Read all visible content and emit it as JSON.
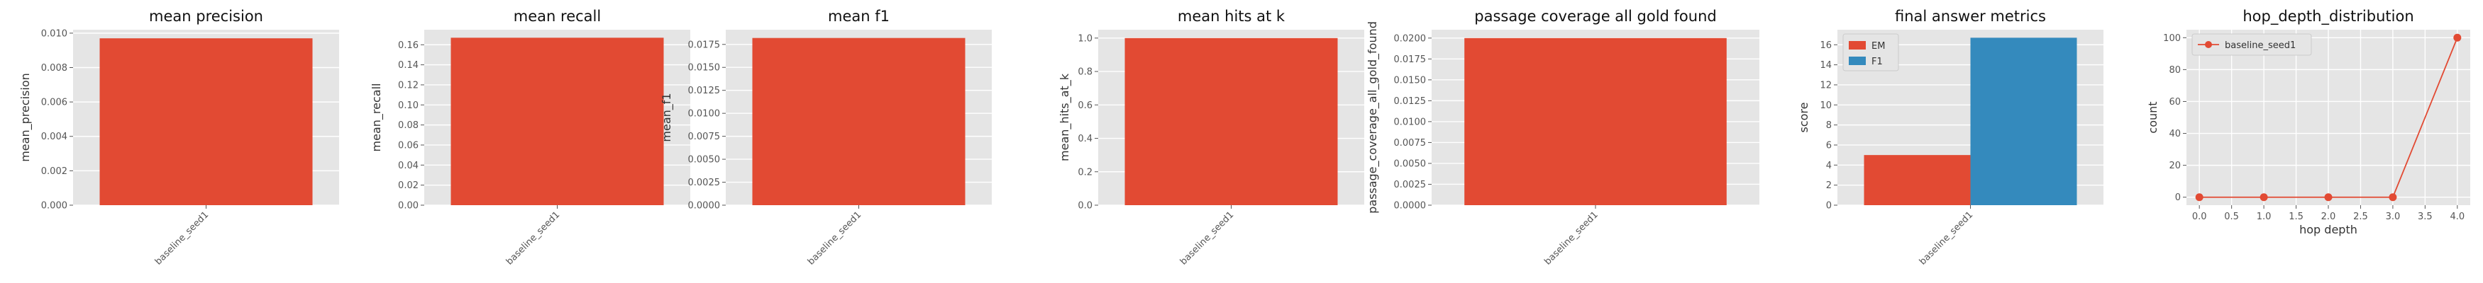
{
  "colors": {
    "panel_bg": "#e5e5e5",
    "grid": "#ffffff",
    "bar": "#e24a33",
    "series_em": "#e24a33",
    "series_f1": "#348abd",
    "line": "#e24a33"
  },
  "chart_data": [
    {
      "type": "bar",
      "title": "mean precision",
      "xlabel": "",
      "ylabel": "mean_precision",
      "categories": [
        "baseline_seed1"
      ],
      "values": [
        0.0097
      ],
      "ylim": [
        0,
        0.0102
      ],
      "yticks": [
        "0.000",
        "0.002",
        "0.004",
        "0.006",
        "0.008",
        "0.010"
      ],
      "grid": true
    },
    {
      "type": "bar",
      "title": "mean recall",
      "xlabel": "",
      "ylabel": "mean_recall",
      "categories": [
        "baseline_seed1"
      ],
      "values": [
        0.167
      ],
      "ylim": [
        0,
        0.175
      ],
      "yticks": [
        "0.00",
        "0.02",
        "0.04",
        "0.06",
        "0.08",
        "0.10",
        "0.12",
        "0.14",
        "0.16"
      ],
      "grid": true
    },
    {
      "type": "bar",
      "title": "mean f1",
      "xlabel": "",
      "ylabel": "mean_f1",
      "categories": [
        "baseline_seed1"
      ],
      "values": [
        0.0182
      ],
      "ylim": [
        0,
        0.0191
      ],
      "yticks": [
        "0.0000",
        "0.0025",
        "0.0050",
        "0.0075",
        "0.0100",
        "0.0125",
        "0.0150",
        "0.0175"
      ],
      "grid": true
    },
    {
      "type": "bar",
      "title": "mean hits at k",
      "xlabel": "",
      "ylabel": "mean_hits_at_k",
      "categories": [
        "baseline_seed1"
      ],
      "values": [
        1.0
      ],
      "ylim": [
        0,
        1.05
      ],
      "yticks": [
        "0.0",
        "0.2",
        "0.4",
        "0.6",
        "0.8",
        "1.0"
      ],
      "grid": true
    },
    {
      "type": "bar",
      "title": "passage coverage all gold found",
      "xlabel": "",
      "ylabel": "passage_coverage_all_gold_found",
      "categories": [
        "baseline_seed1"
      ],
      "values": [
        0.02
      ],
      "ylim": [
        0,
        0.021
      ],
      "yticks": [
        "0.0000",
        "0.0025",
        "0.0050",
        "0.0075",
        "0.0100",
        "0.0125",
        "0.0150",
        "0.0175",
        "0.0200"
      ],
      "grid": true
    },
    {
      "type": "bar",
      "title": "final answer metrics",
      "xlabel": "",
      "ylabel": "score",
      "categories": [
        "baseline_seed1"
      ],
      "series": [
        {
          "name": "EM",
          "values": [
            5.0
          ]
        },
        {
          "name": "F1",
          "values": [
            16.7
          ]
        }
      ],
      "ylim": [
        0,
        17.5
      ],
      "yticks": [
        "0",
        "2",
        "4",
        "6",
        "8",
        "10",
        "12",
        "14",
        "16"
      ],
      "legend": "top-left",
      "grid": true
    },
    {
      "type": "line",
      "title": "hop_depth_distribution",
      "xlabel": "hop depth",
      "ylabel": "count",
      "series": [
        {
          "name": "baseline_seed1",
          "x": [
            0,
            1,
            2,
            3,
            4
          ],
          "y": [
            0,
            0,
            0,
            0,
            100
          ]
        }
      ],
      "xlim": [
        -0.2,
        4.2
      ],
      "ylim": [
        -5,
        105
      ],
      "xticks": [
        "0.0",
        "0.5",
        "1.0",
        "1.5",
        "2.0",
        "2.5",
        "3.0",
        "3.5",
        "4.0"
      ],
      "yticks": [
        "0",
        "20",
        "40",
        "60",
        "80",
        "100"
      ],
      "legend": "top-left",
      "grid": true
    }
  ]
}
